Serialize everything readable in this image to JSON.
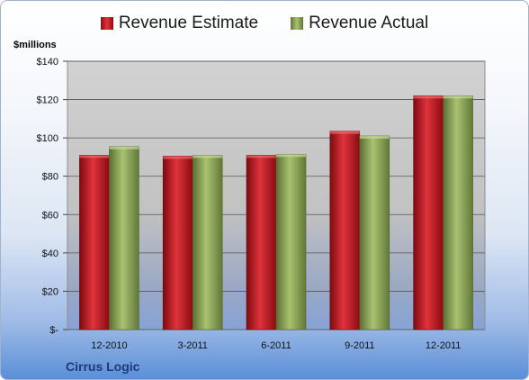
{
  "chart_data": {
    "type": "bar",
    "ylabel": "$millions",
    "ylim": [
      0,
      140
    ],
    "ytick_labels": [
      "$-",
      "$20",
      "$40",
      "$60",
      "$80",
      "$100",
      "$120",
      "$140"
    ],
    "categories": [
      "12-2010",
      "3-2011",
      "6-2011",
      "9-2011",
      "12-2011"
    ],
    "series": [
      {
        "name": "Revenue Estimate",
        "color": "#c0151d",
        "values": [
          91,
          90.5,
          91,
          103.5,
          122
        ]
      },
      {
        "name": "Revenue Actual",
        "color": "#8ea55a",
        "values": [
          95.5,
          91,
          91.5,
          101,
          122
        ]
      }
    ],
    "legend": "top",
    "grid": true
  },
  "company_label": "Cirrus Logic"
}
